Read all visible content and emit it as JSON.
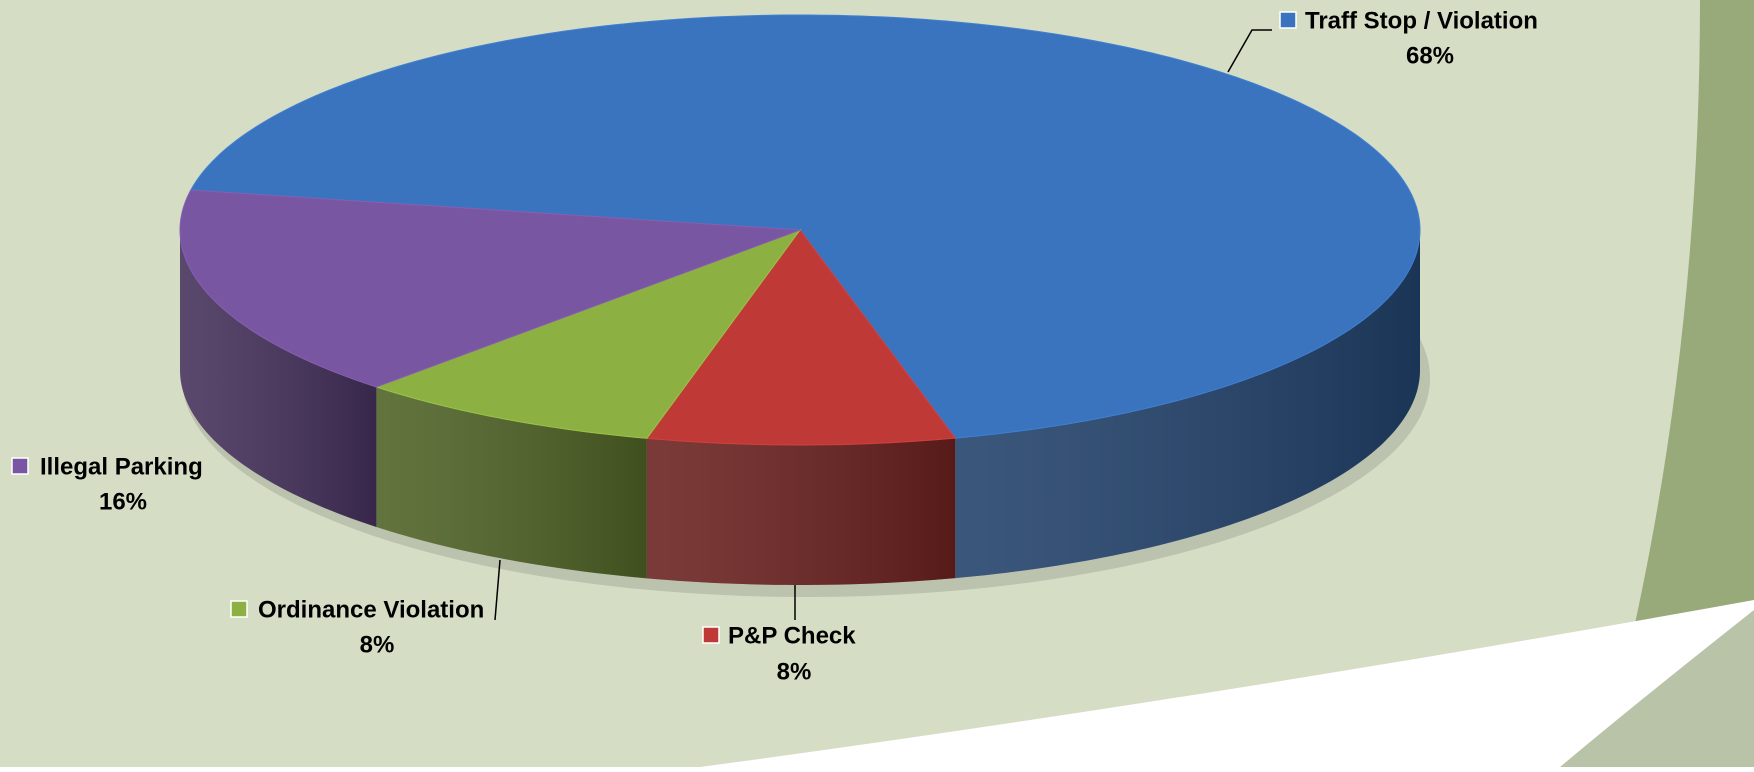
{
  "chart_data": {
    "type": "pie",
    "categories": [
      "Traff Stop / Violation",
      "P&P Check",
      "Ordinance Violation",
      "Illegal Parking"
    ],
    "values": [
      68,
      8,
      8,
      16
    ],
    "value_labels": [
      "68%",
      "8%",
      "8%",
      "16%"
    ],
    "colors": [
      "#3a74bf",
      "#bf3a37",
      "#8cb142",
      "#7956a1"
    ]
  }
}
